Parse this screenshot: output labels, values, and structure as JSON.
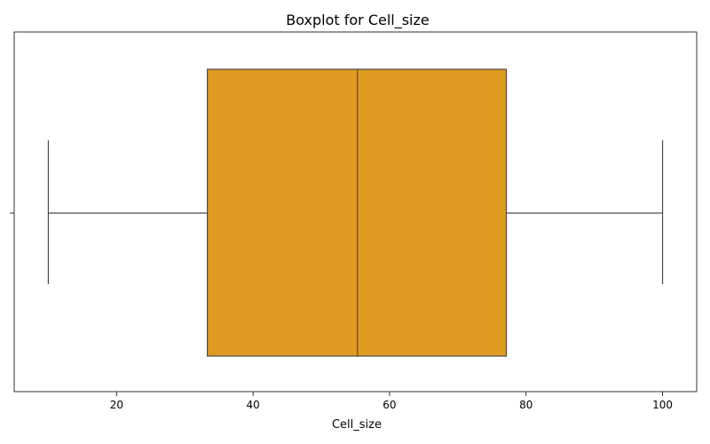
{
  "chart_data": {
    "type": "boxplot",
    "title": "Boxplot for Cell_size",
    "xlabel": "Cell_size",
    "ylabel": "",
    "orientation": "horizontal",
    "xlim": [
      5,
      105
    ],
    "x_ticks": [
      20,
      40,
      60,
      80,
      100
    ],
    "box": {
      "whisker_low": 10,
      "q1": 33.3,
      "median": 55.3,
      "q3": 77.1,
      "whisker_high": 100
    },
    "grid": false,
    "legend": "none",
    "colors": {
      "box_fill": "#e09c20",
      "line": "#4a4a4a",
      "frame": "#000000"
    }
  }
}
